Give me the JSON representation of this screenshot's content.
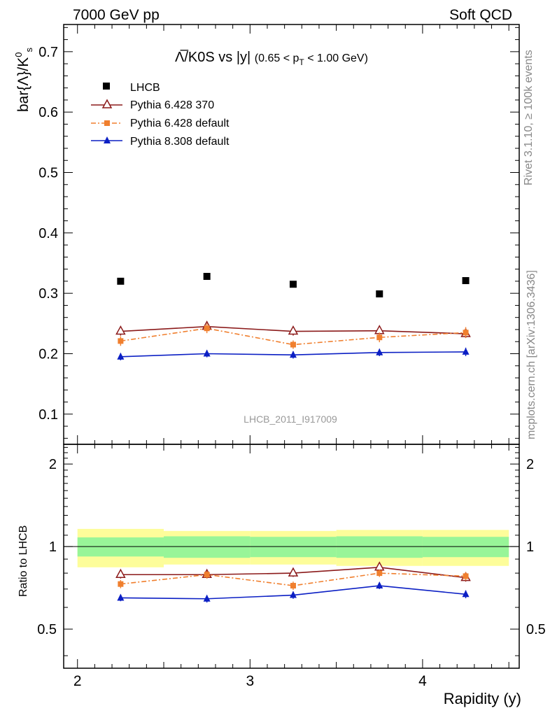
{
  "header": {
    "left": "7000 GeV pp",
    "right": "Soft QCD"
  },
  "side_labels": {
    "rivet": "Rivet 3.1.10, ≥ 100k events",
    "source": "mcplots.cern.ch [arXiv:1306.3436]"
  },
  "chart_data": [
    {
      "type": "scatter",
      "title": "Λ̅/K0S vs |y|",
      "title_cut_text": "(0.65 < p",
      "title_cut_sub": "T",
      "title_cut_tail": " < 1.00 GeV)",
      "ylabel": "bar{Λ}/K",
      "ylabel_sup": "0",
      "ylabel_sub": "s",
      "xlim": [
        1.92,
        4.56
      ],
      "ylim": [
        0.05,
        0.745
      ],
      "yticks": [
        0.1,
        0.2,
        0.3,
        0.4,
        0.5,
        0.6,
        0.7
      ],
      "ytick_labels": [
        "0.1",
        "0.2",
        "0.3",
        "0.4",
        "0.5",
        "0.6",
        "0.7"
      ],
      "watermark": "LHCB_2011_I917009",
      "x": [
        2.25,
        2.75,
        3.25,
        3.75,
        4.25
      ],
      "bin_edges": [
        2.0,
        2.5,
        3.0,
        3.5,
        4.0,
        4.5
      ],
      "series": [
        {
          "name": "LHCB",
          "style": "data",
          "color": "#000000",
          "values": [
            0.32,
            0.328,
            0.315,
            0.299,
            0.321
          ],
          "errors": [
            0,
            0,
            0,
            0,
            0
          ]
        },
        {
          "name": "Pythia 6.428 370",
          "style": "open-triangle",
          "color": "#8b1a1a",
          "values": [
            0.237,
            0.245,
            0.237,
            0.238,
            0.233
          ],
          "errors": [
            0.007,
            0.007,
            0.007,
            0.007,
            0.007
          ]
        },
        {
          "name": "Pythia 6.428 default",
          "style": "dashdot-square",
          "color": "#f07f2e",
          "values": [
            0.221,
            0.242,
            0.215,
            0.227,
            0.235
          ],
          "errors": [
            0.008,
            0.008,
            0.007,
            0.008,
            0.009
          ]
        },
        {
          "name": "Pythia 8.308 default",
          "style": "solid-triangle",
          "color": "#0b1fc4",
          "values": [
            0.195,
            0.2,
            0.198,
            0.202,
            0.203
          ],
          "errors": [
            0.006,
            0.006,
            0.006,
            0.006,
            0.007
          ]
        }
      ]
    },
    {
      "type": "scatter",
      "ylabel": "Ratio to LHCB",
      "xlabel": "Rapidity (y)",
      "ylim": [
        0.36,
        2.36
      ],
      "yticks": [
        0.5,
        1,
        2
      ],
      "ytick_labels": [
        "0.5",
        "1",
        "2"
      ],
      "xticks": [
        2,
        3,
        4
      ],
      "xtick_labels": [
        "2",
        "3",
        "4"
      ],
      "band_inner": [
        0.08,
        0.09,
        0.085,
        0.09,
        0.085
      ],
      "band_outer": [
        0.16,
        0.14,
        0.14,
        0.15,
        0.15
      ],
      "band_colors": {
        "inner": "#98f598",
        "outer": "#fdfd9a"
      },
      "series": [
        {
          "name": "Pythia 6.428 370",
          "values": [
            0.79,
            0.79,
            0.8,
            0.84,
            0.77
          ],
          "errors": [
            0.025,
            0.025,
            0.025,
            0.025,
            0.025
          ]
        },
        {
          "name": "Pythia 6.428 default",
          "values": [
            0.73,
            0.79,
            0.72,
            0.8,
            0.78
          ],
          "errors": [
            0.025,
            0.025,
            0.025,
            0.025,
            0.028
          ]
        },
        {
          "name": "Pythia 8.308 default",
          "values": [
            0.65,
            0.645,
            0.665,
            0.72,
            0.67
          ],
          "errors": [
            0.018,
            0.02,
            0.02,
            0.02,
            0.022
          ]
        }
      ]
    }
  ]
}
